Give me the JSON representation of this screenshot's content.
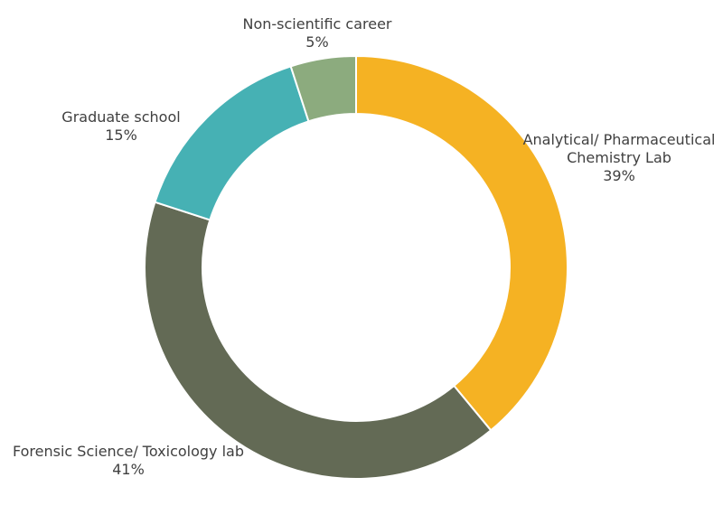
{
  "chart_data": {
    "type": "pie",
    "donut": true,
    "slices": [
      {
        "category": [
          "Analytical/ Pharmaceutical",
          "Chemistry Lab"
        ],
        "value": 39,
        "label": "39%",
        "color": "#F5B223"
      },
      {
        "category": [
          "Forensic Science/ Toxicology lab"
        ],
        "value": 41,
        "label": "41%",
        "color": "#636A55"
      },
      {
        "category": [
          "Graduate school"
        ],
        "value": 15,
        "label": "15%",
        "color": "#46B1B4"
      },
      {
        "category": [
          "Non-scientific career"
        ],
        "value": 5,
        "label": "5%",
        "color": "#8CAB7E"
      }
    ],
    "label_color": "#404040",
    "legend": "none"
  }
}
